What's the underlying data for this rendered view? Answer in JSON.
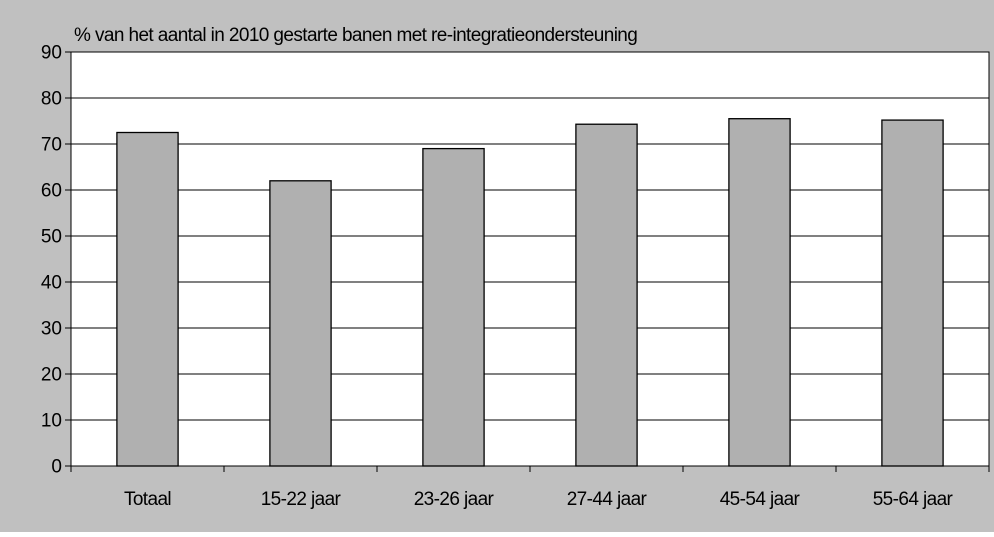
{
  "chart_data": {
    "type": "bar",
    "title": "% van het aantal in 2010 gestarte banen met re-integratieondersteuning",
    "xlabel": "",
    "ylabel": "",
    "categories": [
      "Totaal",
      "15-22 jaar",
      "23-26 jaar",
      "27-44 jaar",
      "45-54 jaar",
      "55-64 jaar"
    ],
    "values": [
      72.5,
      62,
      69,
      74.3,
      75.5,
      75.2
    ],
    "ylim": [
      0,
      90
    ],
    "yticks": [
      0,
      10,
      20,
      30,
      40,
      50,
      60,
      70,
      80,
      90
    ],
    "grid": true,
    "legend": "none",
    "colors": {
      "background": "#c0c0c0",
      "plot_area": "#ffffff",
      "bar_fill": "#b0b0b0",
      "bar_stroke": "#000000"
    }
  }
}
